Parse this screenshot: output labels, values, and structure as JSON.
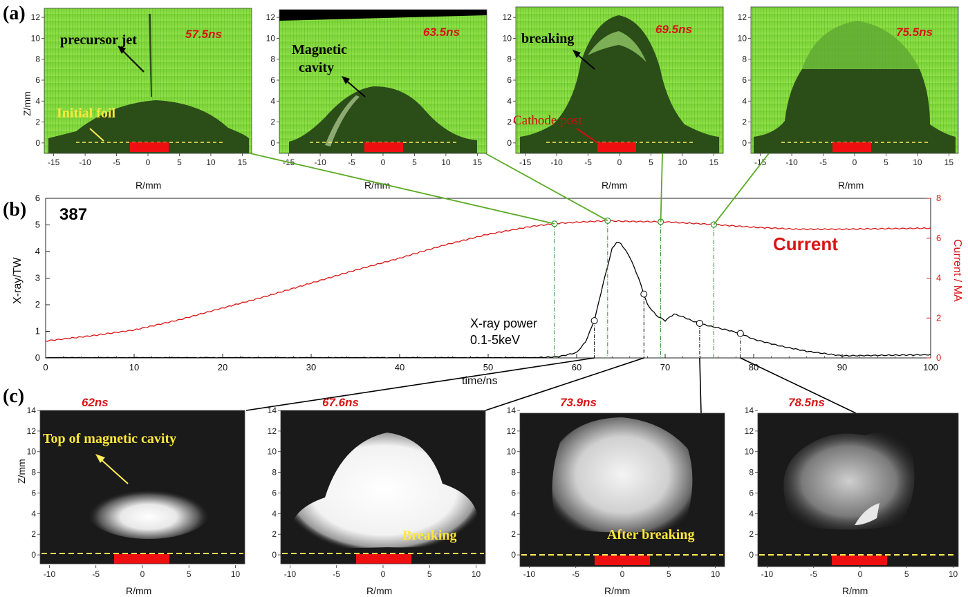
{
  "figure": {
    "label_a": "(a)",
    "label_b": "(b)",
    "label_c": "(c)"
  },
  "panel_a": {
    "x_label": "R/mm",
    "y_label": "Z/mm",
    "x_ticks": [
      "-15",
      "-10",
      "-5",
      "0",
      "5",
      "10",
      "15"
    ],
    "y_ticks": [
      "0",
      "2",
      "4",
      "6",
      "8",
      "10",
      "12"
    ],
    "frames": [
      {
        "time": "57.5ns",
        "annotations": [
          "precursor jet",
          "Initial foil"
        ]
      },
      {
        "time": "63.5ns",
        "annotations": [
          "Magnetic",
          "cavity"
        ]
      },
      {
        "time": "69.5ns",
        "annotations": [
          "breaking",
          "Cathode post"
        ]
      },
      {
        "time": "75.5ns",
        "annotations": []
      }
    ]
  },
  "chart_data": {
    "type": "line",
    "shot_number": "387",
    "xlabel": "time/ns",
    "ylabel": "X-ray/TW",
    "y2label": "Current / MA",
    "xlim": [
      0,
      100
    ],
    "ylim": [
      0,
      6
    ],
    "y2lim": [
      0,
      8
    ],
    "x_ticks": [
      "0",
      "10",
      "20",
      "30",
      "40",
      "50",
      "60",
      "70",
      "80",
      "90",
      "100"
    ],
    "y_ticks": [
      "0",
      "1",
      "2",
      "3",
      "4",
      "5",
      "6"
    ],
    "y2_ticks": [
      "0",
      "2",
      "4",
      "6",
      "8"
    ],
    "series": [
      {
        "name": "Current",
        "axis": "right",
        "color": "#d81414",
        "x": [
          0,
          5,
          10,
          15,
          20,
          25,
          30,
          35,
          40,
          45,
          50,
          55,
          58,
          60,
          63.5,
          65,
          70,
          75,
          80,
          85,
          90,
          95,
          100
        ],
        "y": [
          0.85,
          1.1,
          1.4,
          1.9,
          2.5,
          3.1,
          3.75,
          4.4,
          5.0,
          5.65,
          6.2,
          6.6,
          6.75,
          6.8,
          6.88,
          6.85,
          6.82,
          6.7,
          6.55,
          6.45,
          6.45,
          6.48,
          6.5
        ]
      },
      {
        "name": "X-ray power",
        "axis": "left",
        "color": "#000000",
        "x": [
          0,
          55,
          58,
          60,
          61,
          62,
          63,
          64,
          64.5,
          65,
          66,
          67,
          67.6,
          68,
          69,
          70,
          71,
          72,
          73,
          73.9,
          75,
          77,
          78.5,
          80,
          83,
          86,
          90,
          95,
          100
        ],
        "y": [
          0,
          0,
          0.05,
          0.2,
          0.6,
          1.4,
          2.8,
          4.1,
          4.35,
          4.3,
          3.8,
          3.0,
          2.4,
          2.0,
          1.6,
          1.4,
          1.65,
          1.55,
          1.4,
          1.3,
          1.2,
          1.05,
          0.92,
          0.7,
          0.45,
          0.25,
          0.08,
          0.1,
          0.12
        ]
      }
    ],
    "annotations": {
      "current_label": "Current",
      "xray_line1": "X-ray power",
      "xray_line2": "0.1-5keV"
    },
    "current_markers_x": [
      57.5,
      63.5,
      69.5,
      75.5
    ],
    "xray_markers_x": [
      62,
      67.6,
      73.9,
      78.5
    ],
    "xray_markers_y": [
      1.4,
      2.4,
      1.3,
      0.92
    ]
  },
  "panel_c": {
    "x_label": "R/mm",
    "y_label": "Z/mm",
    "x_ticks": [
      "-10",
      "-5",
      "0",
      "5",
      "10"
    ],
    "y_ticks": [
      "0",
      "2",
      "4",
      "6",
      "8",
      "10",
      "12",
      "14"
    ],
    "frames": [
      {
        "time": "62ns",
        "annotations": [
          "Top of magnetic cavity"
        ]
      },
      {
        "time": "67.6ns",
        "annotations": [
          "Breaking"
        ]
      },
      {
        "time": "73.9ns",
        "annotations": [
          "After breaking"
        ]
      },
      {
        "time": "78.5ns",
        "annotations": []
      }
    ]
  },
  "colors": {
    "green_bg": "#7dd63a",
    "plasma_dark": "#2a4a16",
    "xray_bg": "#1a1a1a",
    "cathode_red": "#ee1010",
    "foil_yellow": "#ffee55",
    "connector_green": "#5aaa22",
    "connector_black": "#000000"
  }
}
